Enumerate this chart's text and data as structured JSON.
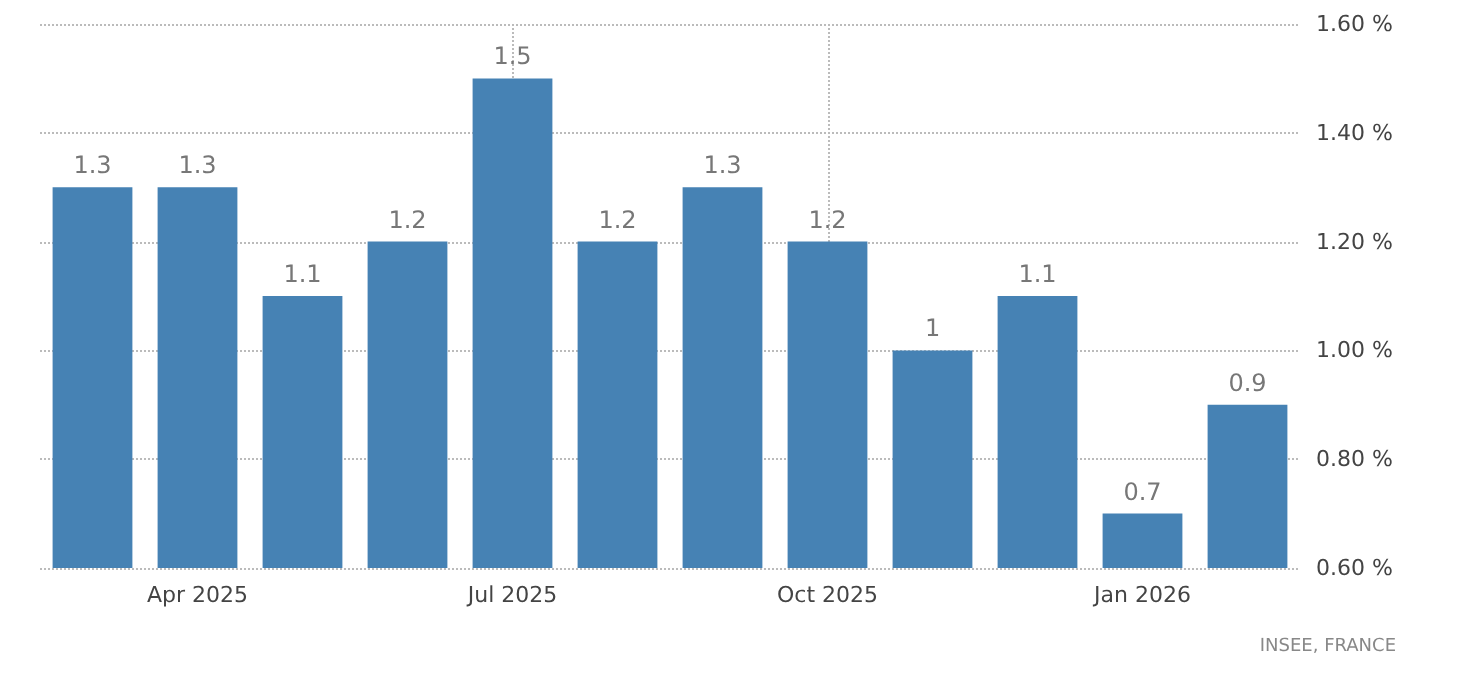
{
  "chart_data": {
    "type": "bar",
    "categories": [
      null,
      "Apr 2025",
      null,
      null,
      "Jul 2025",
      null,
      null,
      "Oct 2025",
      null,
      null,
      "Jan 2026",
      null
    ],
    "values": [
      1.3,
      1.3,
      1.1,
      1.2,
      1.5,
      1.2,
      1.3,
      1.2,
      1,
      1.1,
      0.7,
      0.9
    ],
    "color": "#4682b4",
    "ylim": [
      0.6,
      1.6
    ],
    "yticks": [
      {
        "value": 0.6,
        "label": "0.60 %"
      },
      {
        "value": 0.8,
        "label": "0.80 %"
      },
      {
        "value": 1.0,
        "label": "1.00 %"
      },
      {
        "value": 1.2,
        "label": "1.20 %"
      },
      {
        "value": 1.4,
        "label": "1.40 %"
      },
      {
        "value": 1.6,
        "label": "1.60 %"
      }
    ],
    "grid": true,
    "data_labels": true,
    "annotations": [
      "INSEE, FRANCE"
    ]
  }
}
